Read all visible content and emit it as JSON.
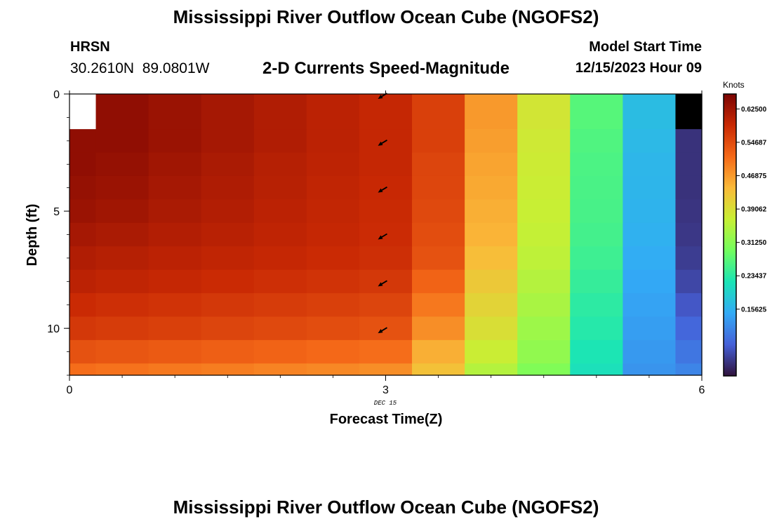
{
  "header": {
    "title": "Mississippi River Outflow Ocean Cube (NGOFS2)",
    "station_name": "HRSN",
    "station_coords": "30.2610N  89.0801W",
    "plot_title": "2-D Currents Speed-Magnitude",
    "model_start_label": "Model Start Time",
    "model_start_value": "12/15/2023 Hour 09"
  },
  "footer": {
    "title": "Mississippi River Outflow Ocean Cube (NGOFS2)"
  },
  "chart_data": {
    "type": "heatmap",
    "title": "2-D Currents Speed-Magnitude",
    "xlabel": "Forecast Time(Z)",
    "ylabel": "Depth (ft)",
    "x_ticks": [
      "0",
      "3",
      "6"
    ],
    "x_tick_values": [
      0,
      3,
      6
    ],
    "y_ticks": [
      "0",
      "5",
      "10"
    ],
    "y_tick_values": [
      0,
      5,
      10
    ],
    "xlim": [
      0,
      6
    ],
    "ylim": [
      0,
      12
    ],
    "date_label": "DEC 15",
    "date_label_at": 3,
    "times": [
      0,
      0.5,
      1,
      1.5,
      2,
      2.5,
      3,
      3.5,
      4,
      4.5,
      5,
      5.5,
      6
    ],
    "depths": [
      1,
      2,
      3,
      4,
      5,
      6,
      7,
      8,
      9,
      10,
      11,
      12
    ],
    "speed_knots": [
      [
        null,
        0.64,
        0.63,
        0.62,
        0.61,
        0.6,
        0.59,
        0.56,
        0.47,
        0.38,
        0.27,
        0.17,
        null
      ],
      [
        0.64,
        0.64,
        0.63,
        0.62,
        0.61,
        0.6,
        0.59,
        0.56,
        0.465,
        0.375,
        0.265,
        0.165,
        0.03
      ],
      [
        0.64,
        0.635,
        0.625,
        0.615,
        0.605,
        0.598,
        0.59,
        0.555,
        0.46,
        0.372,
        0.262,
        0.162,
        0.03
      ],
      [
        0.635,
        0.63,
        0.62,
        0.612,
        0.603,
        0.595,
        0.588,
        0.553,
        0.455,
        0.37,
        0.26,
        0.16,
        0.03
      ],
      [
        0.63,
        0.625,
        0.615,
        0.608,
        0.6,
        0.593,
        0.586,
        0.55,
        0.45,
        0.367,
        0.258,
        0.158,
        0.032
      ],
      [
        0.62,
        0.615,
        0.608,
        0.602,
        0.596,
        0.59,
        0.584,
        0.545,
        0.445,
        0.363,
        0.255,
        0.155,
        0.035
      ],
      [
        0.61,
        0.605,
        0.6,
        0.595,
        0.59,
        0.585,
        0.58,
        0.54,
        0.435,
        0.358,
        0.25,
        0.15,
        0.04
      ],
      [
        0.6,
        0.595,
        0.59,
        0.585,
        0.58,
        0.575,
        0.57,
        0.52,
        0.42,
        0.35,
        0.243,
        0.145,
        0.05
      ],
      [
        0.585,
        0.58,
        0.575,
        0.57,
        0.565,
        0.56,
        0.555,
        0.5,
        0.405,
        0.34,
        0.236,
        0.14,
        0.065
      ],
      [
        0.57,
        0.565,
        0.56,
        0.555,
        0.55,
        0.545,
        0.54,
        0.48,
        0.39,
        0.33,
        0.23,
        0.135,
        0.08
      ],
      [
        0.54,
        0.535,
        0.53,
        0.525,
        0.52,
        0.515,
        0.51,
        0.45,
        0.37,
        0.32,
        0.222,
        0.13,
        0.095
      ],
      [
        0.51,
        0.505,
        0.5,
        0.495,
        0.49,
        0.485,
        0.48,
        0.43,
        0.35,
        0.305,
        0.215,
        0.125,
        0.11
      ]
    ],
    "arrows": {
      "time": 3,
      "depths": [
        0,
        2,
        4,
        6,
        8,
        10
      ],
      "direction": "toward southwest"
    },
    "colorbar": {
      "label": "Knots",
      "min": 0,
      "max": 0.66,
      "ticks": [
        0.15625,
        0.23437,
        0.3125,
        0.39062,
        0.46875,
        0.54687,
        0.625
      ],
      "tick_labels": [
        "0.15625",
        "0.23437",
        "0.31250",
        "0.39062",
        "0.46875",
        "0.54687",
        "0.62500"
      ],
      "stops": [
        "#30123b",
        "#4660d8",
        "#33aaf6",
        "#1ae4b6",
        "#72fe5e",
        "#c8ef34",
        "#faba39",
        "#f56918",
        "#c92904",
        "#7a0403"
      ]
    }
  }
}
